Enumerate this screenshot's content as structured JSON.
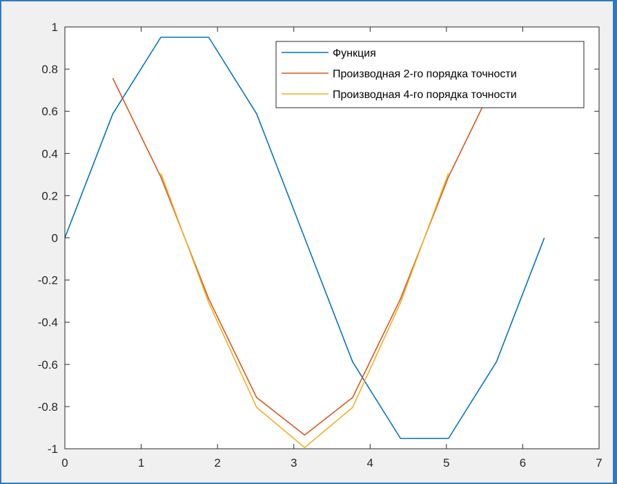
{
  "chart_data": {
    "type": "line",
    "title": "",
    "xlabel": "",
    "ylabel": "",
    "xlim": [
      0,
      7
    ],
    "ylim": [
      -1,
      1
    ],
    "xticks": [
      "0",
      "1",
      "2",
      "3",
      "4",
      "5",
      "6",
      "7"
    ],
    "yticks": [
      "1",
      "0.8",
      "0.6",
      "0.4",
      "0.2",
      "0",
      "-0.2",
      "-0.4",
      "-0.6",
      "-0.8",
      "-1"
    ],
    "xtick_values": [
      0,
      1,
      2,
      3,
      4,
      5,
      6,
      7
    ],
    "ytick_values": [
      1,
      0.8,
      0.6,
      0.4,
      0.2,
      0,
      -0.2,
      -0.4,
      -0.6,
      -0.8,
      -1
    ],
    "grid": false,
    "legend_position": "top-right",
    "series": [
      {
        "name": "Функция",
        "color": "#0072bd",
        "x": [
          0,
          0.628,
          1.257,
          1.885,
          2.513,
          3.142,
          3.77,
          4.398,
          5.027,
          5.655,
          6.283
        ],
        "y": [
          0,
          0.588,
          0.951,
          0.951,
          0.588,
          0,
          -0.588,
          -0.951,
          -0.951,
          -0.588,
          0
        ]
      },
      {
        "name": "Производная 2-го порядка точности",
        "color": "#d95319",
        "x": [
          0.628,
          1.257,
          1.885,
          2.513,
          3.142,
          3.77,
          4.398,
          5.027,
          5.655
        ],
        "y": [
          0.757,
          0.289,
          -0.289,
          -0.757,
          -0.935,
          -0.757,
          -0.289,
          0.289,
          0.757
        ]
      },
      {
        "name": "Производная 4-го порядка точности",
        "color": "#edb120",
        "x": [
          1.257,
          1.885,
          2.513,
          3.142,
          3.77,
          4.398,
          5.027
        ],
        "y": [
          0.307,
          -0.307,
          -0.804,
          -0.994,
          -0.804,
          -0.307,
          0.307
        ]
      }
    ]
  }
}
